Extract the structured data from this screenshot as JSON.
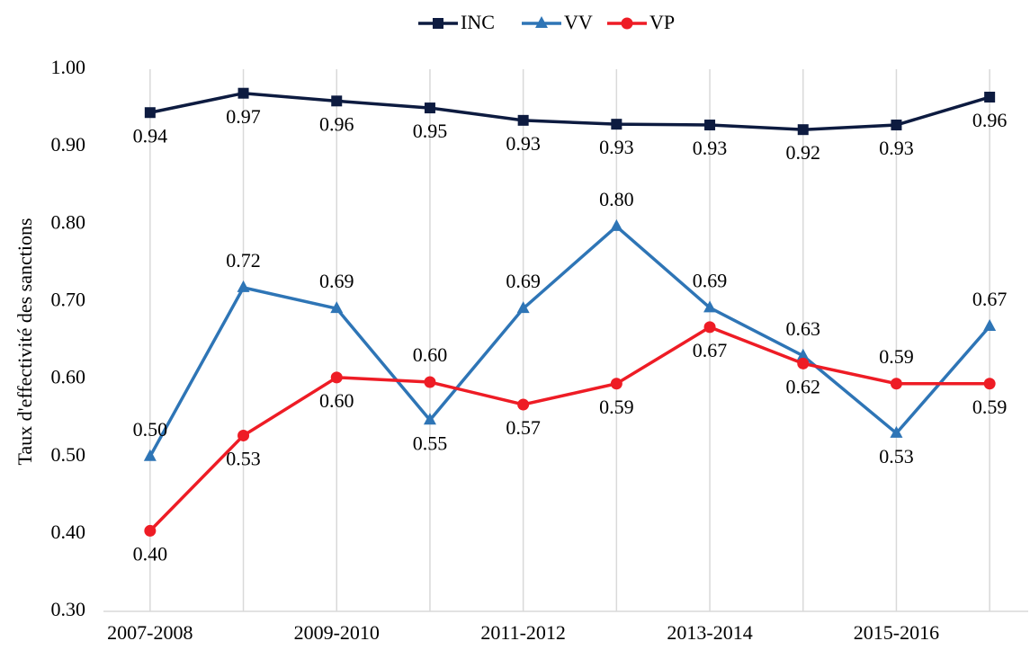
{
  "chart_data": {
    "type": "line",
    "y_label": "Taux d'effectivité des sanctions",
    "categories": [
      "2007-2008",
      null,
      "2009-2010",
      null,
      "2011-2012",
      null,
      "2013-2014",
      null,
      "2015-2016",
      null
    ],
    "series": [
      {
        "name": "INC",
        "color": "#0d1b40",
        "marker": "square",
        "values": [
          0.944,
          0.969,
          0.959,
          0.95,
          0.934,
          0.929,
          0.928,
          0.922,
          0.928,
          0.964
        ],
        "value_labels": [
          "0.94",
          "0.97",
          "0.96",
          "0.95",
          "0.93",
          "0.93",
          "0.93",
          "0.92",
          "0.93",
          "0.96"
        ]
      },
      {
        "name": "VV",
        "color": "#2e75b6",
        "marker": "triangle",
        "values": [
          0.5,
          0.718,
          0.691,
          0.547,
          0.691,
          0.797,
          0.692,
          0.63,
          0.53,
          0.668
        ],
        "value_labels": [
          "0.50",
          "0.72",
          "0.69",
          "0.55",
          "0.69",
          "0.80",
          "0.69",
          "0.63",
          "0.53",
          "0.67"
        ]
      },
      {
        "name": "VP",
        "color": "#ee1c25",
        "marker": "circle",
        "values": [
          0.404,
          0.527,
          0.602,
          0.596,
          0.567,
          0.594,
          0.667,
          0.62,
          0.594,
          0.594
        ],
        "value_labels": [
          "0.40",
          "0.53",
          "0.60",
          "0.60",
          "0.57",
          "0.59",
          "0.67",
          "0.62",
          "0.59",
          "0.59"
        ]
      }
    ],
    "ylim": [
      0.3,
      1.0
    ],
    "yticks": [
      {
        "value": 0.3,
        "label": "0.30"
      },
      {
        "value": 0.4,
        "label": "0.40"
      },
      {
        "value": 0.5,
        "label": "0.50"
      },
      {
        "value": 0.6,
        "label": "0.60"
      },
      {
        "value": 0.7,
        "label": "0.70"
      },
      {
        "value": 0.8,
        "label": "0.80"
      },
      {
        "value": 0.9,
        "label": "0.90"
      },
      {
        "value": 1.0,
        "label": "1.00"
      }
    ],
    "legend": "top"
  }
}
